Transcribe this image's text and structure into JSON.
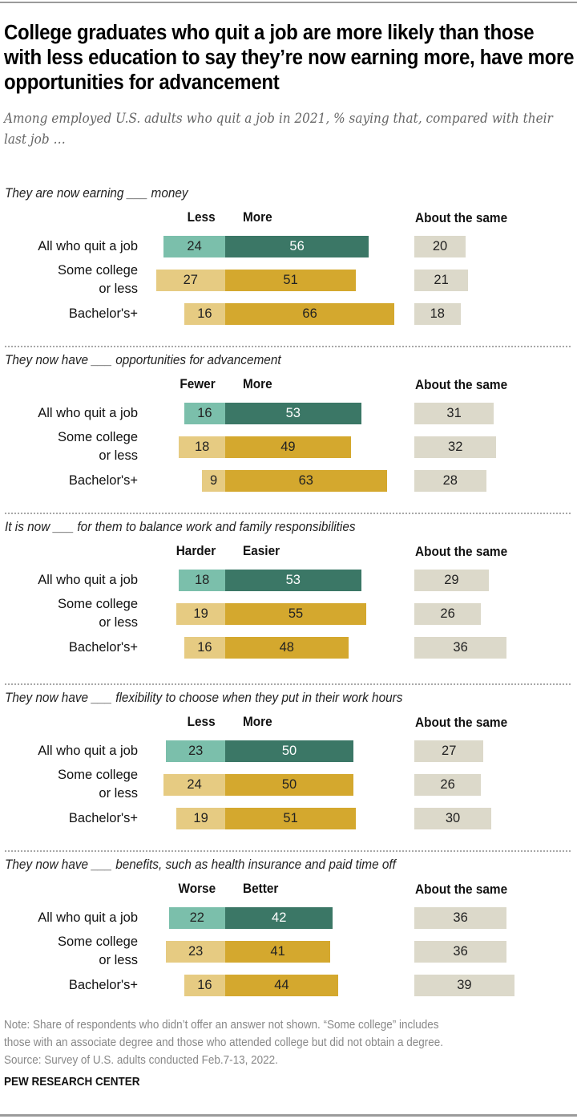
{
  "title": "College graduates who quit a job are more likely than those with less education to say they’re now earning more, have more opportunities for advancement",
  "subtitle": "Among employed U.S. adults who quit a job in 2021, % saying that, compared with their last job …",
  "colors": {
    "neg_total": "#7bbfab",
    "pos_total": "#3b7766",
    "neg_group": "#e6cb82",
    "pos_group": "#d4a82e",
    "same": "#dcd9ca",
    "label_on_dark": "#ffffff",
    "label_on_light": "#222222"
  },
  "chart_data": {
    "type": "bar",
    "orientation": "horizontal-diverging",
    "title": "College graduates who quit a job are more likely than those with less education to say they’re now earning more, have more opportunities for advancement",
    "subtitle": "Among employed U.S. adults who quit a job in 2021, % saying that, compared with their last job …",
    "units": "%",
    "categories": [
      "All who quit a job",
      "Some college or less",
      "Bachelor's+"
    ],
    "category_lines": [
      [
        "All who quit a job"
      ],
      [
        "Some college",
        "or less"
      ],
      [
        "Bachelor's+"
      ]
    ],
    "panels": [
      {
        "question": "They are now earning ___ money",
        "neg_label": "Less",
        "pos_label": "More",
        "same_label": "About the same",
        "neg": [
          24,
          27,
          16
        ],
        "pos": [
          56,
          51,
          66
        ],
        "same": [
          20,
          21,
          18
        ]
      },
      {
        "question": "They now have ___ opportunities for advancement",
        "neg_label": "Fewer",
        "pos_label": "More",
        "same_label": "About the same",
        "neg": [
          16,
          18,
          9
        ],
        "pos": [
          53,
          49,
          63
        ],
        "same": [
          31,
          32,
          28
        ]
      },
      {
        "question": "It is now ___ for them to balance work and family responsibilities",
        "neg_label": "Harder",
        "pos_label": "Easier",
        "same_label": "About the same",
        "neg": [
          18,
          19,
          16
        ],
        "pos": [
          53,
          55,
          48
        ],
        "same": [
          29,
          26,
          36
        ]
      },
      {
        "question": "They now have ___ flexibility to choose when they put in their work hours",
        "neg_label": "Less",
        "pos_label": "More",
        "same_label": "About the same",
        "neg": [
          23,
          24,
          19
        ],
        "pos": [
          50,
          50,
          51
        ],
        "same": [
          27,
          26,
          30
        ]
      },
      {
        "question": "They now have ___ benefits, such as health insurance and paid time off",
        "neg_label": "Worse",
        "pos_label": "Better",
        "same_label": "About the same",
        "neg": [
          22,
          23,
          16
        ],
        "pos": [
          42,
          41,
          44
        ],
        "same": [
          36,
          36,
          39
        ]
      }
    ],
    "legend": "none",
    "grid": false
  },
  "footer": {
    "note_line1": "Note: Share of respondents who didn’t offer an answer not shown. “Some college” includes",
    "note_line2": "those with an associate degree and those who attended college but did not obtain a degree.",
    "source": "Source: Survey of U.S. adults conducted Feb.7-13, 2022.",
    "brand": "PEW RESEARCH CENTER"
  }
}
